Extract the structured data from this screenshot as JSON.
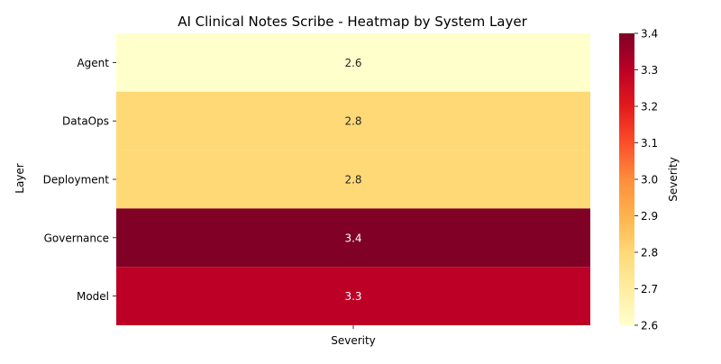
{
  "chart_data": {
    "type": "heatmap",
    "title": "AI Clinical Notes Scribe - Heatmap by System Layer",
    "xlabel": "",
    "ylabel": "Layer",
    "columns": [
      "Severity"
    ],
    "rows": [
      "Agent",
      "DataOps",
      "Deployment",
      "Governance",
      "Model"
    ],
    "values": [
      [
        2.6
      ],
      [
        2.8
      ],
      [
        2.8
      ],
      [
        3.4
      ],
      [
        3.3
      ]
    ],
    "value_labels": [
      "2.6",
      "2.8",
      "2.8",
      "3.4",
      "3.3"
    ],
    "colormap": "YlOrRd",
    "colorbar": {
      "label": "Severity",
      "range": [
        2.6,
        3.4
      ],
      "ticks": [
        "2.6",
        "2.7",
        "2.8",
        "2.9",
        "3.0",
        "3.1",
        "3.2",
        "3.3",
        "3.4"
      ]
    },
    "grid": false,
    "legend": "right"
  }
}
